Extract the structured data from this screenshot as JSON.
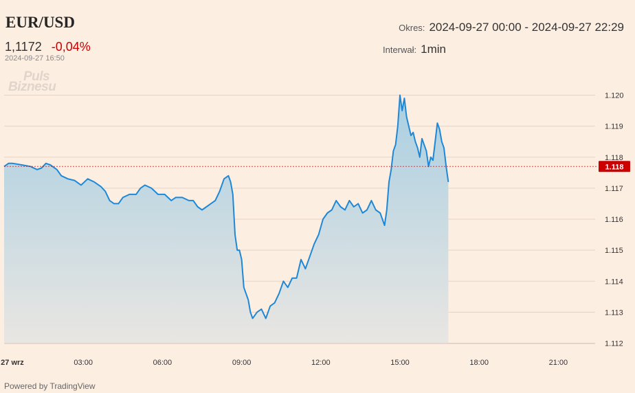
{
  "header": {
    "symbol": "EUR/USD",
    "price": "1,1172",
    "change": "-0,04%",
    "timestamp": "2024-09-27 16:50"
  },
  "period": {
    "label": "Okres:",
    "value": "2024-09-27 00:00 - 2024-09-27 22:29"
  },
  "interval": {
    "label": "Interwał:",
    "value": "1min"
  },
  "watermark": {
    "line1": "Puls",
    "line2": "Biznesu"
  },
  "footer": {
    "powered": "Powered by TradingView"
  },
  "colors": {
    "line": "#1e88d6",
    "area_top": "#a9cfe2",
    "area_bottom": "#e9e6e2",
    "grid": "#e6d3c6",
    "last_price": "#cc0000",
    "negative": "#cc0000"
  },
  "chart_data": {
    "type": "area",
    "x_unit": "time (HH:MM, 2024-09-27)",
    "x_range": [
      "00:00",
      "23:00"
    ],
    "ylim": [
      1.112,
      1.12
    ],
    "y_ticks": [
      "1.112",
      "1.113",
      "1.114",
      "1.115",
      "1.116",
      "1.117",
      "1.118",
      "1.119",
      "1.120"
    ],
    "x_ticks": [
      {
        "t": "00:00",
        "label": "27 wrz"
      },
      {
        "t": "03:00",
        "label": "03:00"
      },
      {
        "t": "06:00",
        "label": "06:00"
      },
      {
        "t": "09:00",
        "label": "09:00"
      },
      {
        "t": "12:00",
        "label": "12:00"
      },
      {
        "t": "15:00",
        "label": "15:00"
      },
      {
        "t": "18:00",
        "label": "18:00"
      },
      {
        "t": "21:00",
        "label": "21:00"
      }
    ],
    "last_price": {
      "value": 1.1177,
      "label": "1.118"
    },
    "grid": true,
    "series": [
      {
        "x": [
          "00:00",
          "00:10",
          "00:20",
          "00:40",
          "01:00",
          "01:15",
          "01:25",
          "01:35",
          "01:45",
          "02:00",
          "02:10",
          "02:25",
          "02:40",
          "02:55",
          "03:10",
          "03:25",
          "03:40",
          "03:50",
          "04:00",
          "04:10",
          "04:20",
          "04:30",
          "04:45",
          "05:00",
          "05:10",
          "05:20",
          "05:35",
          "05:50",
          "06:05",
          "06:20",
          "06:30",
          "06:45",
          "07:00",
          "07:10",
          "07:20",
          "07:30",
          "07:40",
          "07:50",
          "08:00",
          "08:10",
          "08:20",
          "08:30",
          "08:35",
          "08:40",
          "08:45",
          "08:50",
          "08:55",
          "09:00",
          "09:05",
          "09:15",
          "09:20",
          "09:25",
          "09:35",
          "09:45",
          "09:55",
          "10:05",
          "10:15",
          "10:25",
          "10:35",
          "10:45",
          "10:55",
          "11:05",
          "11:15",
          "11:25",
          "11:35",
          "11:45",
          "11:55",
          "12:05",
          "12:15",
          "12:25",
          "12:35",
          "12:45",
          "12:55",
          "13:05",
          "13:15",
          "13:25",
          "13:35",
          "13:45",
          "13:55",
          "14:05",
          "14:15",
          "14:25",
          "14:30",
          "14:35",
          "14:40",
          "14:45",
          "14:50",
          "14:55",
          "15:00",
          "15:05",
          "15:10",
          "15:15",
          "15:20",
          "15:25",
          "15:30",
          "15:35",
          "15:40",
          "15:45",
          "15:50",
          "15:55",
          "16:00",
          "16:05",
          "16:10",
          "16:15",
          "16:20",
          "16:25",
          "16:30",
          "16:35",
          "16:40",
          "16:45",
          "16:50"
        ],
        "values": [
          1.1177,
          1.1178,
          1.1178,
          1.11775,
          1.1177,
          1.1176,
          1.11765,
          1.1178,
          1.11775,
          1.1176,
          1.1174,
          1.1173,
          1.11725,
          1.1171,
          1.1173,
          1.1172,
          1.11705,
          1.1169,
          1.1166,
          1.1165,
          1.1165,
          1.1167,
          1.1168,
          1.1168,
          1.117,
          1.1171,
          1.117,
          1.1168,
          1.1168,
          1.1166,
          1.1167,
          1.1167,
          1.1166,
          1.1166,
          1.1164,
          1.1163,
          1.1164,
          1.1165,
          1.1166,
          1.1169,
          1.1173,
          1.1174,
          1.1172,
          1.1168,
          1.1155,
          1.115,
          1.115,
          1.1147,
          1.1138,
          1.1134,
          1.113,
          1.1128,
          1.113,
          1.1131,
          1.1128,
          1.1132,
          1.1133,
          1.1136,
          1.114,
          1.1138,
          1.1141,
          1.1141,
          1.1147,
          1.1144,
          1.1148,
          1.1152,
          1.1155,
          1.116,
          1.1162,
          1.1163,
          1.1166,
          1.1164,
          1.1163,
          1.1166,
          1.1164,
          1.1165,
          1.1162,
          1.1163,
          1.1166,
          1.1163,
          1.1162,
          1.1158,
          1.1163,
          1.1172,
          1.1176,
          1.1182,
          1.1184,
          1.119,
          1.12,
          1.1195,
          1.1199,
          1.1193,
          1.119,
          1.1187,
          1.1188,
          1.1185,
          1.1183,
          1.118,
          1.1186,
          1.1184,
          1.1182,
          1.1177,
          1.118,
          1.1179,
          1.1185,
          1.1191,
          1.1189,
          1.1185,
          1.1183,
          1.1177,
          1.1172
        ]
      }
    ]
  }
}
